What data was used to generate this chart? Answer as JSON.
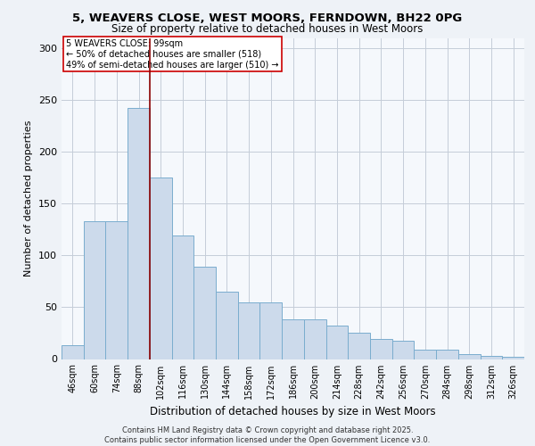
{
  "title_line1": "5, WEAVERS CLOSE, WEST MOORS, FERNDOWN, BH22 0PG",
  "title_line2": "Size of property relative to detached houses in West Moors",
  "xlabel": "Distribution of detached houses by size in West Moors",
  "ylabel": "Number of detached properties",
  "categories": [
    "46sqm",
    "60sqm",
    "74sqm",
    "88sqm",
    "102sqm",
    "116sqm",
    "130sqm",
    "144sqm",
    "158sqm",
    "172sqm",
    "186sqm",
    "200sqm",
    "214sqm",
    "228sqm",
    "242sqm",
    "256sqm",
    "270sqm",
    "284sqm",
    "298sqm",
    "312sqm",
    "326sqm"
  ],
  "values": [
    13,
    133,
    133,
    242,
    175,
    119,
    89,
    65,
    55,
    55,
    38,
    38,
    32,
    25,
    19,
    18,
    9,
    9,
    5,
    3,
    2
  ],
  "bar_color": "#ccdaeb",
  "bar_edge_color": "#7aadce",
  "vline_color": "#8b0000",
  "annotation_text": "5 WEAVERS CLOSE: 99sqm\n← 50% of detached houses are smaller (518)\n49% of semi-detached houses are larger (510) →",
  "annotation_box_color": "white",
  "annotation_box_edge_color": "#cc0000",
  "ylim": [
    0,
    310
  ],
  "yticks": [
    0,
    50,
    100,
    150,
    200,
    250,
    300
  ],
  "footer_text": "Contains HM Land Registry data © Crown copyright and database right 2025.\nContains public sector information licensed under the Open Government Licence v3.0.",
  "bg_color": "#eef2f7",
  "plot_bg_color": "#f5f8fc",
  "grid_color": "#c5cdd8",
  "title_fontsize": 9.5,
  "subtitle_fontsize": 8.5,
  "ylabel_fontsize": 8,
  "xlabel_fontsize": 8.5,
  "tick_fontsize": 7,
  "annotation_fontsize": 7,
  "footer_fontsize": 6
}
